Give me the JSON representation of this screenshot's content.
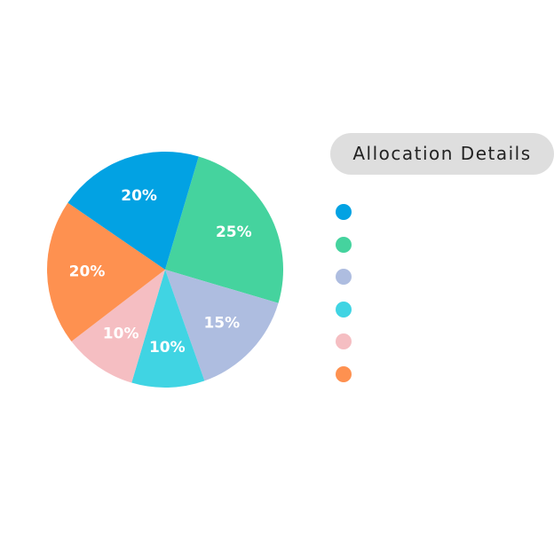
{
  "chart_data": {
    "type": "pie",
    "title": "",
    "slices": [
      {
        "label": "",
        "value": 25,
        "display": "25%",
        "color": "#45d39e"
      },
      {
        "label": "",
        "value": 15,
        "display": "15%",
        "color": "#aebde0"
      },
      {
        "label": "",
        "value": 10,
        "display": "10%",
        "color": "#40d4e3"
      },
      {
        "label": "",
        "value": 10,
        "display": "10%",
        "color": "#f5bec2"
      },
      {
        "label": "",
        "value": 20,
        "display": "20%",
        "color": "#fe9150"
      },
      {
        "label": "",
        "value": 20,
        "display": "20%",
        "color": "#02a2e3"
      }
    ],
    "legend": {
      "title": "Allocation Details",
      "order": [
        5,
        0,
        1,
        2,
        3,
        4
      ],
      "placement": "right"
    }
  }
}
